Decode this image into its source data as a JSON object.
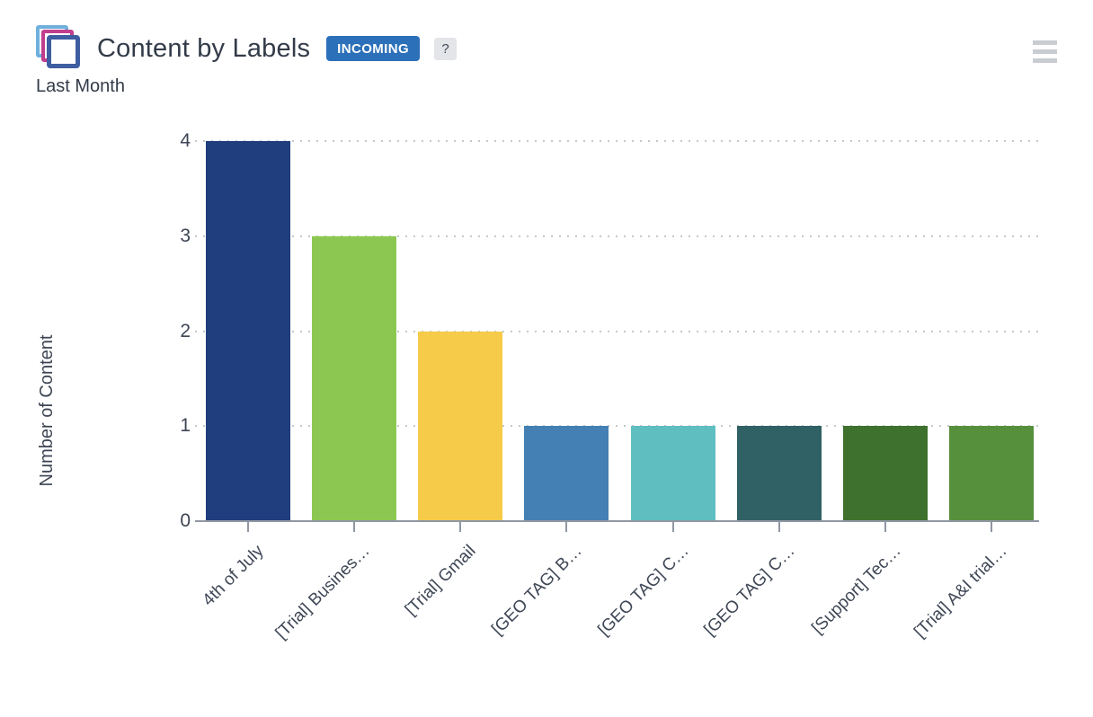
{
  "header": {
    "title": "Content by Labels",
    "badge": "INCOMING",
    "help": "?",
    "subtitle": "Last Month"
  },
  "colors": {
    "badge_bg": "#2c70b9",
    "icon_back": "#6fb0dd",
    "icon_middle": "#c13e8d",
    "icon_front": "#3f5da1",
    "axis_line": "#9097a3",
    "gridline": "#c2cac9",
    "text": "#3d4554",
    "hamburger": "#c9ccd1"
  },
  "chart_data": {
    "type": "bar",
    "title": "Content by Labels",
    "subtitle": "Last Month",
    "categories": [
      "4th of July",
      "[Trial] Busines…",
      "[Trial] Gmail",
      "[GEO TAG] B…",
      "[GEO TAG] C…",
      "[GEO TAG] C…",
      "[Support] Tec…",
      "[Trial] A&I trial…"
    ],
    "values": [
      4,
      3,
      2,
      1,
      1,
      1,
      1,
      1
    ],
    "bar_colors": [
      "#203e7e",
      "#8cc851",
      "#f6cb4a",
      "#4480b3",
      "#5fbfc0",
      "#2f6165",
      "#3d712d",
      "#56903c"
    ],
    "xlabel": "",
    "ylabel": "Number of Content",
    "yticks": [
      0,
      1,
      2,
      3,
      4
    ],
    "ylim": [
      0,
      4
    ],
    "grid": "horizontal-dotted",
    "legend": "none",
    "x_label_rotation": -45
  }
}
